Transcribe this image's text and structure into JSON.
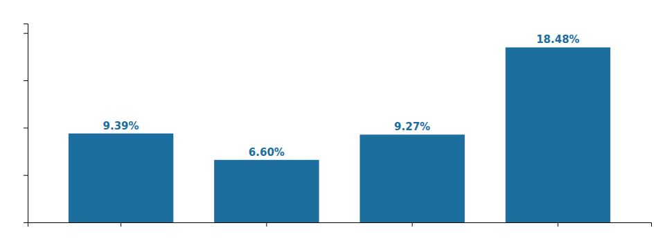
{
  "chart_data": {
    "type": "bar",
    "categories": [
      null,
      null,
      null,
      null
    ],
    "values": [
      9.39,
      6.6,
      9.27,
      18.48
    ],
    "value_labels": [
      "9.39%",
      "6.60%",
      "9.27%",
      "18.48%"
    ],
    "data_labels": true,
    "color": "#1B6E9E",
    "ylim": [
      0,
      21
    ],
    "yticks": [
      0,
      5,
      10,
      15,
      20
    ],
    "grid": false,
    "tick_labels": false
  }
}
